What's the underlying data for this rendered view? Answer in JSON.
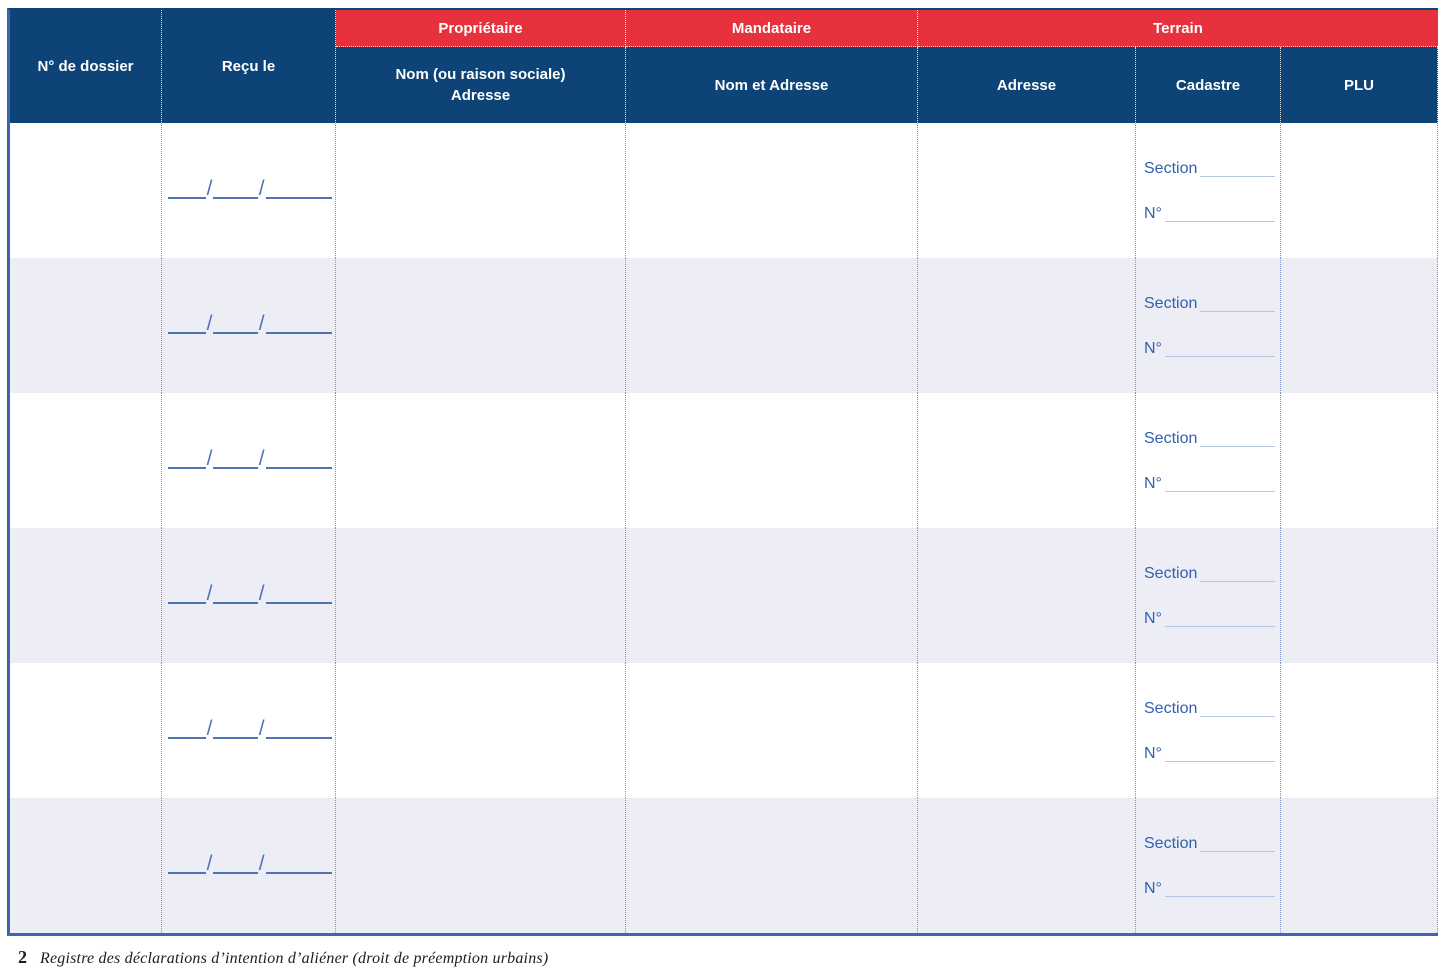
{
  "colors": {
    "header_blue": "#0d4377",
    "header_red": "#e7313d",
    "row_alt_bg": "#ededf6",
    "field_line_blue": "#4f74b4",
    "field_text_blue": "#3260ae",
    "rule_light_blue": "#b7c7e3",
    "grid_dot_blue": "#8097c8",
    "outer_border_blue": "#3e66ae"
  },
  "header": {
    "col_dossier": "N° de dossier",
    "col_recu": "Reçu le",
    "group_proprietaire": "Propriétaire",
    "group_mandataire": "Mandataire",
    "group_terrain": "Terrain",
    "sub_proprietaire_line1": "Nom (ou raison sociale)",
    "sub_proprietaire_line2": "Adresse",
    "sub_mandataire": "Nom et Adresse",
    "sub_terrain_adresse": "Adresse",
    "sub_terrain_cadastre": "Cadastre",
    "sub_terrain_plu": "PLU"
  },
  "body": {
    "row_count": 6,
    "date_separator": "/",
    "section_label": "Section",
    "number_label": "N°"
  },
  "footer": {
    "page_number": "2",
    "caption": "Registre des déclarations d’intention d’aliéner (droit de préemption urbains)"
  }
}
